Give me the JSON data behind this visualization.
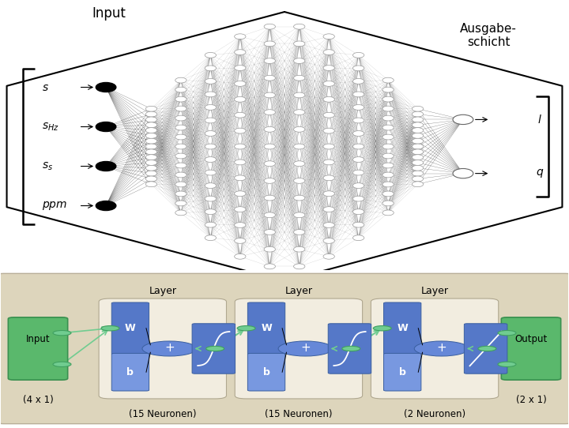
{
  "input_labels": [
    "$s$",
    "$s_{Hz}$",
    "$s_s$",
    "$ppm$"
  ],
  "output_labels": [
    "$l$",
    "$q$"
  ],
  "n_input": 4,
  "n_hidden": 15,
  "n_output": 2,
  "n_hidden_cols": 10,
  "input_label": "Input",
  "output_label": "Ausgabe-\nschicht",
  "layer_label": "Layer",
  "layer_labels_bottom": [
    "(15 Neuronen)",
    "(15 Neuronen)",
    "(2 Neuronen)"
  ],
  "input_box_text": "Input",
  "input_size_text": "(4 x 1)",
  "output_box_text": "Output",
  "output_size_text": "(2 x 1)",
  "bg_bottom": "#ddd5bc",
  "green": "#5ab86c",
  "green_edge": "#3a9050",
  "conn_green": "#70cc90",
  "conn_green_edge": "#40a060",
  "blue_w": "#5578c8",
  "blue_b": "#7898e0",
  "blue_plus": "#6688d8",
  "blue_act": "#5578c8",
  "blue_edge": "#3a5fa0"
}
